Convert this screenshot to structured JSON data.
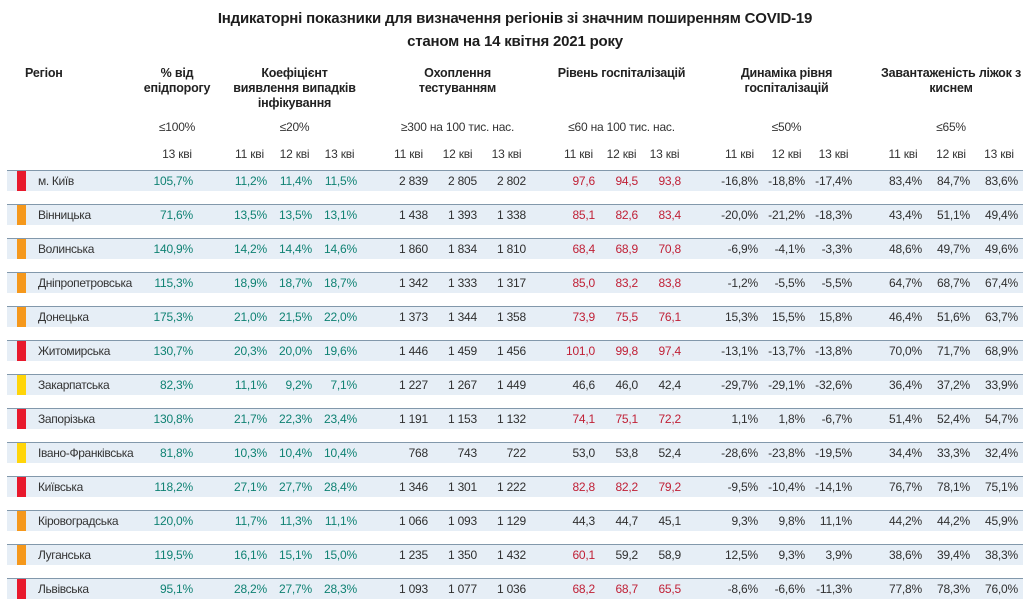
{
  "title": {
    "line1": "Індикаторні показники для визначення регіонів зі значним поширенням COVID-19",
    "line2": "станом на 14 квітня 2021 року"
  },
  "header": {
    "region_label": "Регіон",
    "groups": [
      {
        "label": "% від епідпорогу",
        "threshold": "≤100%",
        "dates": [
          "13 кві"
        ]
      },
      {
        "label": "Коефіцієнт виявлення випадків інфікування",
        "threshold": "≤20%",
        "dates": [
          "11 кві",
          "12 кві",
          "13 кві"
        ]
      },
      {
        "label": "Охоплення тестуванням",
        "threshold": "≥300 на 100 тис. нас.",
        "dates": [
          "11 кві",
          "12 кві",
          "13 кві"
        ]
      },
      {
        "label": "Рівень госпіталізацій",
        "threshold": "≤60 на 100 тис. нас.",
        "dates": [
          "11 кві",
          "12 кві",
          "13 кві"
        ]
      },
      {
        "label": "Динаміка рівня госпіталізацій",
        "threshold": "≤50%",
        "dates": [
          "11 кві",
          "12 кві",
          "13 кві"
        ]
      },
      {
        "label": "Завантаженість ліжок з киснем",
        "threshold": "≤65%",
        "dates": [
          "11 кві",
          "12 кві",
          "13 кві"
        ]
      }
    ]
  },
  "colors": {
    "marker_red": "#e8192c",
    "marker_orange": "#f5981c",
    "marker_yellow": "#ffd50a",
    "value_green": "#0f8273",
    "value_red": "#c01f35",
    "value_dark": "#2f2f2f",
    "row_bg": "#e6eef6",
    "row_border": "#8298ab"
  },
  "rows": [
    {
      "region": "м. Київ",
      "marker": "red",
      "epid": "105,7%",
      "detection": [
        "11,2%",
        "11,4%",
        "11,5%"
      ],
      "testing": [
        "2 839",
        "2 805",
        "2 802"
      ],
      "hosp": [
        "97,6",
        "94,5",
        "93,8"
      ],
      "hosp_red": [
        true,
        true,
        true
      ],
      "dynamics": [
        "-16,8%",
        "-18,8%",
        "-17,4%"
      ],
      "beds": [
        "83,4%",
        "84,7%",
        "83,6%"
      ]
    },
    {
      "region": "Вінницька",
      "marker": "orange",
      "epid": "71,6%",
      "detection": [
        "13,5%",
        "13,5%",
        "13,1%"
      ],
      "testing": [
        "1 438",
        "1 393",
        "1 338"
      ],
      "hosp": [
        "85,1",
        "82,6",
        "83,4"
      ],
      "hosp_red": [
        true,
        true,
        true
      ],
      "dynamics": [
        "-20,0%",
        "-21,2%",
        "-18,3%"
      ],
      "beds": [
        "43,4%",
        "51,1%",
        "49,4%"
      ]
    },
    {
      "region": "Волинська",
      "marker": "orange",
      "epid": "140,9%",
      "detection": [
        "14,2%",
        "14,4%",
        "14,6%"
      ],
      "testing": [
        "1 860",
        "1 834",
        "1 810"
      ],
      "hosp": [
        "68,4",
        "68,9",
        "70,8"
      ],
      "hosp_red": [
        true,
        true,
        true
      ],
      "dynamics": [
        "-6,9%",
        "-4,1%",
        "-3,3%"
      ],
      "beds": [
        "48,6%",
        "49,7%",
        "49,6%"
      ]
    },
    {
      "region": "Дніпропетровська",
      "marker": "orange",
      "epid": "115,3%",
      "detection": [
        "18,9%",
        "18,7%",
        "18,7%"
      ],
      "testing": [
        "1 342",
        "1 333",
        "1 317"
      ],
      "hosp": [
        "85,0",
        "83,2",
        "83,8"
      ],
      "hosp_red": [
        true,
        true,
        true
      ],
      "dynamics": [
        "-1,2%",
        "-5,5%",
        "-5,5%"
      ],
      "beds": [
        "64,7%",
        "68,7%",
        "67,4%"
      ]
    },
    {
      "region": "Донецька",
      "marker": "orange",
      "epid": "175,3%",
      "detection": [
        "21,0%",
        "21,5%",
        "22,0%"
      ],
      "testing": [
        "1 373",
        "1 344",
        "1 358"
      ],
      "hosp": [
        "73,9",
        "75,5",
        "76,1"
      ],
      "hosp_red": [
        true,
        true,
        true
      ],
      "dynamics": [
        "15,3%",
        "15,5%",
        "15,8%"
      ],
      "beds": [
        "46,4%",
        "51,6%",
        "63,7%"
      ]
    },
    {
      "region": "Житомирська",
      "marker": "red",
      "epid": "130,7%",
      "detection": [
        "20,3%",
        "20,0%",
        "19,6%"
      ],
      "testing": [
        "1 446",
        "1 459",
        "1 456"
      ],
      "hosp": [
        "101,0",
        "99,8",
        "97,4"
      ],
      "hosp_red": [
        true,
        true,
        true
      ],
      "dynamics": [
        "-13,1%",
        "-13,7%",
        "-13,8%"
      ],
      "beds": [
        "70,0%",
        "71,7%",
        "68,9%"
      ]
    },
    {
      "region": "Закарпатська",
      "marker": "yellow",
      "epid": "82,3%",
      "detection": [
        "11,1%",
        "9,2%",
        "7,1%"
      ],
      "testing": [
        "1 227",
        "1 267",
        "1 449"
      ],
      "hosp": [
        "46,6",
        "46,0",
        "42,4"
      ],
      "hosp_red": [
        false,
        false,
        false
      ],
      "dynamics": [
        "-29,7%",
        "-29,1%",
        "-32,6%"
      ],
      "beds": [
        "36,4%",
        "37,2%",
        "33,9%"
      ]
    },
    {
      "region": "Запорізька",
      "marker": "red",
      "epid": "130,8%",
      "detection": [
        "21,7%",
        "22,3%",
        "23,4%"
      ],
      "testing": [
        "1 191",
        "1 153",
        "1 132"
      ],
      "hosp": [
        "74,1",
        "75,1",
        "72,2"
      ],
      "hosp_red": [
        true,
        true,
        true
      ],
      "dynamics": [
        "1,1%",
        "1,8%",
        "-6,7%"
      ],
      "beds": [
        "51,4%",
        "52,4%",
        "54,7%"
      ]
    },
    {
      "region": "Івано-Франківська",
      "marker": "yellow",
      "epid": "81,8%",
      "detection": [
        "10,3%",
        "10,4%",
        "10,4%"
      ],
      "testing": [
        "768",
        "743",
        "722"
      ],
      "hosp": [
        "53,0",
        "53,8",
        "52,4"
      ],
      "hosp_red": [
        false,
        false,
        false
      ],
      "dynamics": [
        "-28,6%",
        "-23,8%",
        "-19,5%"
      ],
      "beds": [
        "34,4%",
        "33,3%",
        "32,4%"
      ]
    },
    {
      "region": "Київська",
      "marker": "red",
      "epid": "118,2%",
      "detection": [
        "27,1%",
        "27,7%",
        "28,4%"
      ],
      "testing": [
        "1 346",
        "1 301",
        "1 222"
      ],
      "hosp": [
        "82,8",
        "82,2",
        "79,2"
      ],
      "hosp_red": [
        true,
        true,
        true
      ],
      "dynamics": [
        "-9,5%",
        "-10,4%",
        "-14,1%"
      ],
      "beds": [
        "76,7%",
        "78,1%",
        "75,1%"
      ]
    },
    {
      "region": "Кіровоградська",
      "marker": "orange",
      "epid": "120,0%",
      "detection": [
        "11,7%",
        "11,3%",
        "11,1%"
      ],
      "testing": [
        "1 066",
        "1 093",
        "1 129"
      ],
      "hosp": [
        "44,3",
        "44,7",
        "45,1"
      ],
      "hosp_red": [
        false,
        false,
        false
      ],
      "dynamics": [
        "9,3%",
        "9,8%",
        "11,1%"
      ],
      "beds": [
        "44,2%",
        "44,2%",
        "45,9%"
      ]
    },
    {
      "region": "Луганська",
      "marker": "orange",
      "epid": "119,5%",
      "detection": [
        "16,1%",
        "15,1%",
        "15,0%"
      ],
      "testing": [
        "1 235",
        "1 350",
        "1 432"
      ],
      "hosp": [
        "60,1",
        "59,2",
        "58,9"
      ],
      "hosp_red": [
        true,
        false,
        false
      ],
      "dynamics": [
        "12,5%",
        "9,3%",
        "3,9%"
      ],
      "beds": [
        "38,6%",
        "39,4%",
        "38,3%"
      ]
    },
    {
      "region": "Львівська",
      "marker": "red",
      "epid": "95,1%",
      "detection": [
        "28,2%",
        "27,7%",
        "28,3%"
      ],
      "testing": [
        "1 093",
        "1 077",
        "1 036"
      ],
      "hosp": [
        "68,2",
        "68,7",
        "65,5"
      ],
      "hosp_red": [
        true,
        true,
        true
      ],
      "dynamics": [
        "-8,6%",
        "-6,6%",
        "-11,3%"
      ],
      "beds": [
        "77,8%",
        "78,3%",
        "76,0%"
      ]
    }
  ]
}
